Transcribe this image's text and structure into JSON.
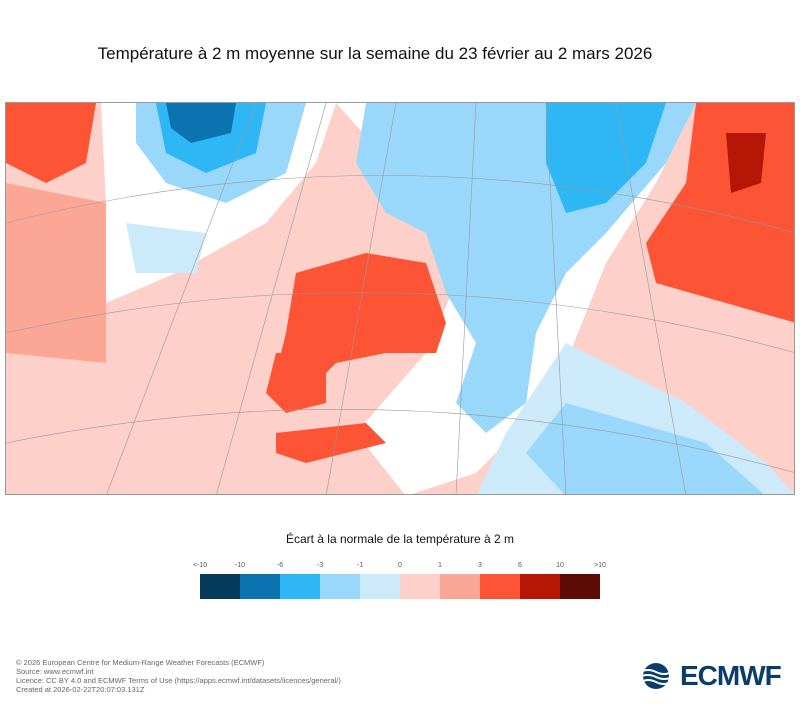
{
  "title": "Température à 2 m moyenne sur la semaine du 23 février au 2 mars 2026",
  "legend": {
    "title": "Écart à la normale de la température à 2 m",
    "ticks": [
      "<-10",
      "-10",
      "-6",
      "-3",
      "-1",
      "0",
      "1",
      "3",
      "6",
      "10",
      ">10"
    ],
    "colors": [
      "#053a5c",
      "#0a73b0",
      "#2fb7f5",
      "#9ad8fb",
      "#cdeafb",
      "#fdd0c9",
      "#fca696",
      "#fc5435",
      "#b51606",
      "#5c0b05"
    ]
  },
  "footer": {
    "copyright": "© 2026 European Centre for Medium-Range Weather Forecasts (ECMWF)",
    "source": "Source: www.ecmwf.int",
    "licence": "Licence: CC BY 4.0 and ECMWF Terms of Use (https://apps.ecmwf.int/datasets/licences/general/)",
    "created": "Created at 2026-02-22T20:07:03.131Z"
  },
  "logo": {
    "text": "ECMWF"
  }
}
